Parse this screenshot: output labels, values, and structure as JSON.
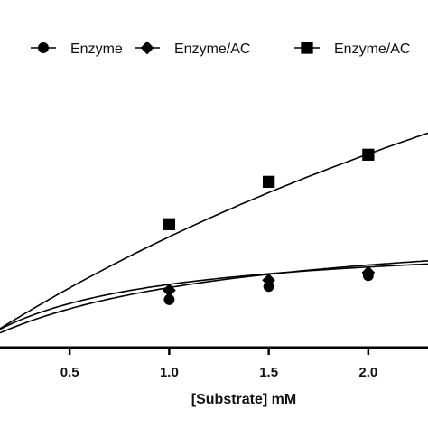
{
  "chart_data": {
    "type": "scatter",
    "title": "",
    "xlabel": "[Substrate] mM",
    "ylabel": "",
    "xlim": [
      0.15,
      2.3
    ],
    "ylim": [
      0,
      1
    ],
    "x_ticks": [
      "0.5",
      "1.0",
      "1.5",
      "2.0"
    ],
    "x_tick_values": [
      0.5,
      1.0,
      1.5,
      2.0
    ],
    "grid": false,
    "legend_position": "top",
    "series": [
      {
        "name": "Enzyme",
        "marker": "circle",
        "color": "#000000",
        "x": [
          1.0,
          1.5,
          2.0
        ],
        "y": [
          0.138,
          0.176,
          0.207
        ],
        "fit": {
          "vmax": 0.38,
          "km": 1.2
        }
      },
      {
        "name": "Enzyme/AC",
        "marker": "diamond",
        "color": "#000000",
        "x": [
          1.0,
          1.5,
          2.0
        ],
        "y": [
          0.165,
          0.194,
          0.216
        ],
        "fit": {
          "vmax": 0.32,
          "km": 0.76
        }
      },
      {
        "name": "Enzyme/AC",
        "marker": "square",
        "color": "#000000",
        "x": [
          1.0,
          1.5,
          2.0
        ],
        "y": [
          0.355,
          0.477,
          0.555
        ],
        "fit": {
          "vmax": 2.2,
          "km": 5.9
        }
      }
    ]
  }
}
